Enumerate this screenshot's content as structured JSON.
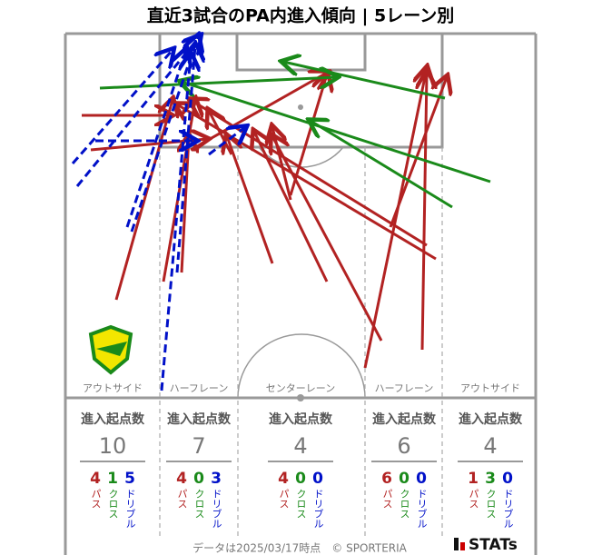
{
  "title": "直近3試合のPA内進入傾向 | 5レーン別",
  "stat_heading": "進入起点数",
  "stat_labels": {
    "pass": "パス",
    "cross": "クロス",
    "dribble": "ドリブル"
  },
  "lanes": [
    {
      "label": "アウトサイド",
      "total": "10",
      "pass": "4",
      "cross": "1",
      "dribble": "5"
    },
    {
      "label": "ハーフレーン",
      "total": "7",
      "pass": "4",
      "cross": "0",
      "dribble": "3"
    },
    {
      "label": "センターレーン",
      "total": "4",
      "pass": "4",
      "cross": "0",
      "dribble": "0"
    },
    {
      "label": "ハーフレーン",
      "total": "6",
      "pass": "6",
      "cross": "0",
      "dribble": "0"
    },
    {
      "label": "アウトサイド",
      "total": "4",
      "pass": "1",
      "cross": "3",
      "dribble": "0"
    }
  ],
  "footer": "データは2025/03/17時点　© SPORTERIA",
  "logo": "STATs"
}
